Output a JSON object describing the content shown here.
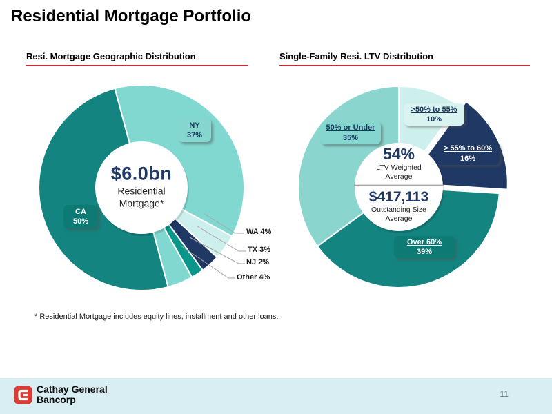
{
  "title": "Residential Mortgage Portfolio",
  "footnote": "* Residential Mortgage includes equity lines, installment and other loans.",
  "page_number": "11",
  "footer": {
    "brand_line1": "Cathay General",
    "brand_line2": "Bancorp"
  },
  "colors": {
    "dark_teal": "#13847F",
    "light_teal": "#80D8D1",
    "pale_teal": "#CDF0ED",
    "navy": "#1F3864",
    "nj_teal": "#0B968C",
    "heading_underline_red": "#C22F36",
    "footer_bar_bg": "#D9EEF2",
    "logo_red": "#DC3A33"
  },
  "chart_data": [
    {
      "type": "pie",
      "subtype": "donut",
      "title": "Resi. Mortgage Geographic Distribution",
      "categories": [
        "NY",
        "WA",
        "TX",
        "NJ",
        "Other",
        "CA"
      ],
      "values": [
        37,
        4,
        3,
        2,
        4,
        50
      ],
      "unit": "%",
      "slice_colors": [
        "#80D8D1",
        "#CDF0ED",
        "#1F3864",
        "#0B968C",
        "#80D8D1",
        "#13847F"
      ],
      "start_angle": -15,
      "center_text": {
        "value": "$6.0bn",
        "line1": "Residential",
        "line2": "Mortgage*"
      },
      "callouts": {
        "ny": {
          "line1": "NY",
          "line2": "37%"
        },
        "ca": {
          "line1": "CA",
          "line2": "50%"
        },
        "wa": "WA 4%",
        "tx": "TX 3%",
        "nj": "NJ 2%",
        "other": "Other 4%"
      }
    },
    {
      "type": "pie",
      "subtype": "donut",
      "title": "Single-Family Resi. LTV Distribution",
      "categories": [
        ">50% to 55%",
        "> 55% to 60%",
        "Over 60%",
        "50% or Under"
      ],
      "values": [
        10,
        16,
        39,
        35
      ],
      "unit": "%",
      "slice_colors": [
        "#CDF0ED",
        "#1F3864",
        "#13847F",
        "#8AD5CE"
      ],
      "start_angle": 0,
      "explode_index": 1,
      "center_text": {
        "value1": "54%",
        "label1_line1": "LTV Weighted",
        "label1_line2": "Average",
        "value2": "$417,113",
        "label2_line1": "Outstanding Size",
        "label2_line2": "Average"
      },
      "labels": {
        "under50": {
          "line1": "50% or Under",
          "line2": "35%"
        },
        "b50to55": {
          "line1": ">50% to 55%",
          "line2": "10%"
        },
        "b55to60": {
          "line1": "> 55% to 60%",
          "line2": "16%"
        },
        "over60": {
          "line1": "Over 60%",
          "line2": "39%"
        }
      }
    }
  ]
}
